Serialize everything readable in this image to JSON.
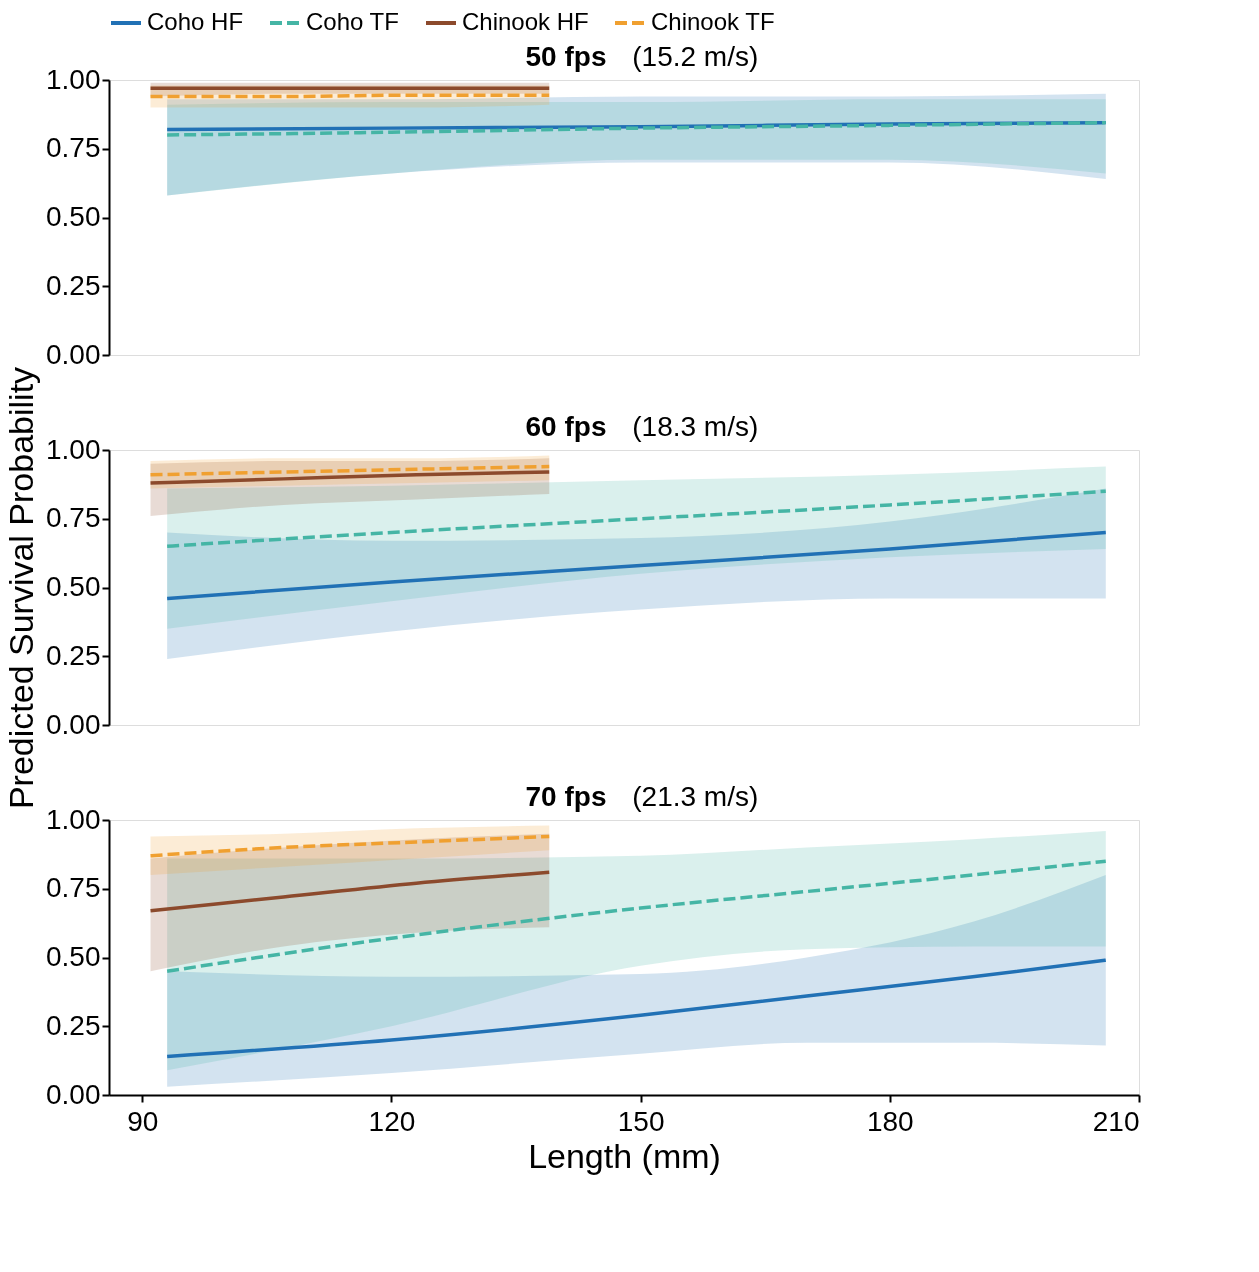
{
  "chart_data": [
    {
      "type": "line",
      "title": "50 fps",
      "subtitle": "(15.2 m/s)",
      "xlim": [
        86,
        210
      ],
      "xticks": [
        90,
        120,
        150,
        180,
        210
      ],
      "ylim": [
        0,
        1
      ],
      "yticks": [
        {
          "value": 0,
          "label": "0.00"
        },
        {
          "value": 0.25,
          "label": "0.25"
        },
        {
          "value": 0.5,
          "label": "0.50"
        },
        {
          "value": 0.75,
          "label": "0.75"
        },
        {
          "value": 1,
          "label": "1.00"
        }
      ],
      "tick_labels": "y",
      "legend": "top",
      "series": [
        {
          "name": "Coho HF",
          "color": "#2171b5",
          "line_style": "solid",
          "x": [
            93,
            120,
            150,
            180,
            206
          ],
          "values": [
            0.82,
            0.825,
            0.83,
            0.84,
            0.845
          ],
          "lower": [
            0.58,
            0.66,
            0.7,
            0.7,
            0.64
          ],
          "upper": [
            0.93,
            0.93,
            0.94,
            0.94,
            0.95
          ]
        },
        {
          "name": "Coho TF",
          "color": "#45b5a5",
          "line_style": "dashed",
          "x": [
            93,
            120,
            150,
            180,
            206
          ],
          "values": [
            0.8,
            0.81,
            0.825,
            0.835,
            0.845
          ],
          "lower": [
            0.58,
            0.66,
            0.71,
            0.71,
            0.66
          ],
          "upper": [
            0.91,
            0.92,
            0.92,
            0.93,
            0.93
          ]
        },
        {
          "name": "Chinook HF",
          "color": "#8c4a2c",
          "line_style": "solid",
          "x": [
            91,
            107,
            123,
            139
          ],
          "values": [
            0.97,
            0.97,
            0.97,
            0.97
          ],
          "lower": [
            0.94,
            0.95,
            0.95,
            0.95
          ],
          "upper": [
            0.99,
            0.99,
            0.99,
            0.99
          ]
        },
        {
          "name": "Chinook TF",
          "color": "#f0a030",
          "line_style": "dashed",
          "x": [
            91,
            107,
            123,
            139
          ],
          "values": [
            0.94,
            0.94,
            0.945,
            0.945
          ],
          "lower": [
            0.9,
            0.9,
            0.9,
            0.91
          ],
          "upper": [
            0.98,
            0.98,
            0.98,
            0.98
          ]
        }
      ]
    },
    {
      "type": "line",
      "title": "60 fps",
      "subtitle": "(18.3 m/s)",
      "ylabel": "Predicted Survival Probability",
      "xlim": [
        86,
        210
      ],
      "xticks": [
        90,
        120,
        150,
        180,
        210
      ],
      "ylim": [
        0,
        1
      ],
      "yticks": [
        {
          "value": 0,
          "label": "0.00"
        },
        {
          "value": 0.25,
          "label": "0.25"
        },
        {
          "value": 0.5,
          "label": "0.50"
        },
        {
          "value": 0.75,
          "label": "0.75"
        },
        {
          "value": 1,
          "label": "1.00"
        }
      ],
      "tick_labels": "y",
      "series": [
        {
          "color": "#2171b5",
          "line_style": "solid",
          "x": [
            93,
            120,
            150,
            180,
            206
          ],
          "values": [
            0.46,
            0.52,
            0.58,
            0.64,
            0.7
          ],
          "lower": [
            0.24,
            0.34,
            0.42,
            0.46,
            0.46
          ],
          "upper": [
            0.7,
            0.67,
            0.68,
            0.74,
            0.86
          ]
        },
        {
          "color": "#45b5a5",
          "line_style": "dashed",
          "x": [
            93,
            120,
            150,
            180,
            206
          ],
          "values": [
            0.65,
            0.7,
            0.75,
            0.8,
            0.85
          ],
          "lower": [
            0.35,
            0.45,
            0.55,
            0.61,
            0.64
          ],
          "upper": [
            0.86,
            0.87,
            0.89,
            0.91,
            0.94
          ]
        },
        {
          "color": "#8c4a2c",
          "line_style": "solid",
          "x": [
            91,
            107,
            123,
            139
          ],
          "values": [
            0.88,
            0.895,
            0.91,
            0.92
          ],
          "lower": [
            0.76,
            0.8,
            0.82,
            0.84
          ],
          "upper": [
            0.95,
            0.96,
            0.96,
            0.97
          ]
        },
        {
          "color": "#f0a030",
          "line_style": "dashed",
          "x": [
            91,
            107,
            123,
            139
          ],
          "values": [
            0.91,
            0.92,
            0.93,
            0.94
          ],
          "lower": [
            0.86,
            0.87,
            0.88,
            0.89
          ],
          "upper": [
            0.96,
            0.97,
            0.97,
            0.98
          ]
        }
      ]
    },
    {
      "type": "line",
      "title": "70 fps",
      "subtitle": "(21.3 m/s)",
      "xlabel": "Length (mm)",
      "xlim": [
        86,
        210
      ],
      "xticks": [
        90,
        120,
        150,
        180,
        210
      ],
      "ylim": [
        0,
        1
      ],
      "yticks": [
        {
          "value": 0,
          "label": "0.00"
        },
        {
          "value": 0.25,
          "label": "0.25"
        },
        {
          "value": 0.5,
          "label": "0.50"
        },
        {
          "value": 0.75,
          "label": "0.75"
        },
        {
          "value": 1,
          "label": "1.00"
        }
      ],
      "series": [
        {
          "color": "#2171b5",
          "line_style": "solid",
          "x": [
            93,
            120,
            150,
            170,
            190,
            206
          ],
          "values": [
            0.14,
            0.2,
            0.29,
            0.36,
            0.43,
            0.49
          ],
          "lower": [
            0.03,
            0.08,
            0.15,
            0.19,
            0.19,
            0.18
          ],
          "upper": [
            0.45,
            0.43,
            0.44,
            0.5,
            0.63,
            0.8
          ]
        },
        {
          "color": "#45b5a5",
          "line_style": "dashed",
          "x": [
            93,
            120,
            150,
            170,
            190,
            206
          ],
          "values": [
            0.45,
            0.57,
            0.68,
            0.74,
            0.8,
            0.85
          ],
          "lower": [
            0.09,
            0.25,
            0.47,
            0.53,
            0.54,
            0.54
          ],
          "upper": [
            0.86,
            0.86,
            0.87,
            0.9,
            0.93,
            0.96
          ]
        },
        {
          "color": "#8c4a2c",
          "line_style": "solid",
          "x": [
            91,
            107,
            123,
            139
          ],
          "values": [
            0.67,
            0.72,
            0.77,
            0.81
          ],
          "lower": [
            0.45,
            0.54,
            0.59,
            0.61
          ],
          "upper": [
            0.86,
            0.9,
            0.93,
            0.95
          ]
        },
        {
          "color": "#f0a030",
          "line_style": "dashed",
          "x": [
            91,
            107,
            123,
            139
          ],
          "values": [
            0.87,
            0.9,
            0.92,
            0.94
          ],
          "lower": [
            0.8,
            0.83,
            0.86,
            0.89
          ],
          "upper": [
            0.94,
            0.95,
            0.97,
            0.98
          ]
        }
      ]
    }
  ]
}
